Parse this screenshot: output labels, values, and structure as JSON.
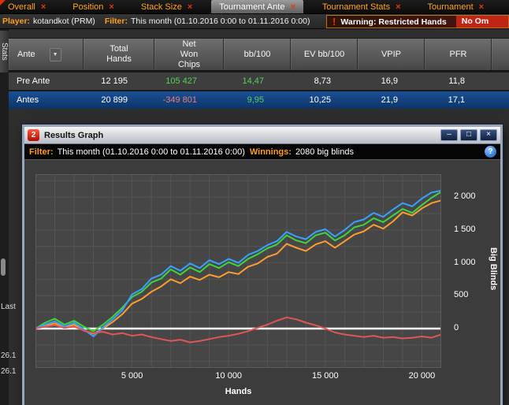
{
  "colors": {
    "accent_orange": "#ff9d1e",
    "positive_green": "#58d058",
    "negative_red": "#ef7d7d",
    "selected_row_blue": "#0d3468"
  },
  "tab_bar": {
    "close_glyph": "×",
    "tabs": [
      {
        "label": "Overall",
        "active": false
      },
      {
        "label": "Position",
        "active": false
      },
      {
        "label": "Stack Size",
        "active": false
      },
      {
        "label": "Tournament Ante",
        "active": true
      },
      {
        "label": "Tournament Stats",
        "active": false
      },
      {
        "label": "Tournament",
        "active": false
      }
    ]
  },
  "info_bar": {
    "player_label": "Player:",
    "player_value": "kotandkot (PRM)",
    "filter_label": "Filter:",
    "filter_value": "This month (01.10.2016 0:00 to 01.11.2016 0:00)",
    "warning_icon": "!",
    "warning_text": "Warning: Restricted Hands",
    "warning_extra": "No Om"
  },
  "side_panel": {
    "vertical_tab_label": "Stats",
    "fragments": [
      "Last",
      "26.1",
      "26.1"
    ]
  },
  "stats_table": {
    "sort_arrow": "▼",
    "columns": [
      "Ante",
      "Total\nHands",
      "Net\nWon\nChips",
      "bb/100",
      "EV bb/100",
      "VPIP",
      "PFR"
    ],
    "rows": [
      {
        "name": "Pre Ante",
        "selected": false,
        "cells": [
          {
            "v": "12 195",
            "cls": "plain"
          },
          {
            "v": "105 427",
            "cls": "green"
          },
          {
            "v": "14,47",
            "cls": "green"
          },
          {
            "v": "8,73",
            "cls": "plain"
          },
          {
            "v": "16,9",
            "cls": "plain"
          },
          {
            "v": "11,8",
            "cls": "plain"
          }
        ]
      },
      {
        "name": "Antes",
        "selected": true,
        "cells": [
          {
            "v": "20 899",
            "cls": "plain"
          },
          {
            "v": "-349 801",
            "cls": "red"
          },
          {
            "v": "9,95",
            "cls": "green"
          },
          {
            "v": "10,25",
            "cls": "plain"
          },
          {
            "v": "21,9",
            "cls": "plain"
          },
          {
            "v": "17,1",
            "cls": "plain"
          }
        ]
      }
    ]
  },
  "graph_window": {
    "icon_glyph": "2",
    "title": "Results Graph",
    "buttons": {
      "minimize": "–",
      "maximize": "□",
      "close": "×"
    },
    "filter_label": "Filter:",
    "filter_value": "This month (01.10.2016 0:00 to 01.11.2016 0:00)",
    "winnings_label": "Winnings:",
    "winnings_value": "2080 big blinds",
    "help_glyph": "?"
  },
  "chart_data": {
    "type": "line",
    "title": "Results Graph",
    "xlabel": "Hands",
    "ylabel": "Big Blinds",
    "xlim": [
      0,
      21000
    ],
    "ylim": [
      -600,
      2350
    ],
    "legend": "none",
    "plot_bg": "#464646",
    "grid": {
      "x_step": 1000,
      "y_step": 250,
      "color": "#555555"
    },
    "zero_line_color": "#ffffff",
    "xticks": [
      {
        "v": 5000,
        "label": "5 000"
      },
      {
        "v": 10000,
        "label": "10 000"
      },
      {
        "v": 15000,
        "label": "15 000"
      },
      {
        "v": 20000,
        "label": "20 000"
      }
    ],
    "yticks": [
      {
        "v": 0,
        "label": "0"
      },
      {
        "v": 500,
        "label": "500"
      },
      {
        "v": 1000,
        "label": "1 000"
      },
      {
        "v": 1500,
        "label": "1 500"
      },
      {
        "v": 2000,
        "label": "2 000"
      }
    ],
    "x": [
      0,
      500,
      1000,
      1500,
      2000,
      2500,
      3000,
      3500,
      4000,
      4500,
      5000,
      5500,
      6000,
      6500,
      7000,
      7500,
      8000,
      8500,
      9000,
      9500,
      10000,
      10500,
      11000,
      11500,
      12000,
      12500,
      13000,
      13500,
      14000,
      14500,
      15000,
      15500,
      16000,
      16500,
      17000,
      17500,
      18000,
      18500,
      19000,
      19500,
      20000,
      20500,
      21000
    ],
    "series": [
      {
        "name": "orange-line",
        "color": "#ff9c2e",
        "values": [
          0,
          40,
          80,
          10,
          60,
          -30,
          -80,
          0,
          100,
          220,
          380,
          450,
          560,
          640,
          750,
          690,
          790,
          740,
          820,
          780,
          860,
          830,
          940,
          990,
          1090,
          1140,
          1290,
          1230,
          1180,
          1280,
          1330,
          1230,
          1330,
          1430,
          1480,
          1580,
          1520,
          1630,
          1770,
          1720,
          1830,
          1910,
          1950
        ]
      },
      {
        "name": "green-line",
        "color": "#3ed43e",
        "values": [
          0,
          90,
          150,
          60,
          120,
          30,
          -40,
          60,
          180,
          320,
          480,
          560,
          700,
          760,
          900,
          820,
          930,
          860,
          980,
          920,
          1010,
          950,
          1060,
          1130,
          1220,
          1280,
          1420,
          1340,
          1300,
          1420,
          1460,
          1340,
          1420,
          1540,
          1580,
          1680,
          1620,
          1720,
          1820,
          1760,
          1880,
          1990,
          2080
        ]
      },
      {
        "name": "blue-line",
        "color": "#3aa0ff",
        "values": [
          0,
          60,
          110,
          30,
          90,
          -10,
          -120,
          20,
          140,
          280,
          520,
          600,
          760,
          820,
          950,
          880,
          990,
          920,
          1040,
          980,
          1060,
          1000,
          1120,
          1180,
          1270,
          1330,
          1470,
          1400,
          1360,
          1470,
          1510,
          1400,
          1500,
          1620,
          1660,
          1760,
          1700,
          1810,
          1910,
          1860,
          1980,
          2070,
          2100
        ]
      },
      {
        "name": "red-line",
        "color": "#e05555",
        "values": [
          0,
          30,
          50,
          10,
          30,
          -30,
          -70,
          -50,
          -90,
          -70,
          -110,
          -90,
          -130,
          -160,
          -190,
          -170,
          -210,
          -190,
          -160,
          -130,
          -110,
          -80,
          -40,
          10,
          60,
          120,
          170,
          140,
          90,
          50,
          0,
          -60,
          -90,
          -110,
          -130,
          -110,
          -140,
          -130,
          -150,
          -140,
          -120,
          -140,
          -90
        ]
      }
    ]
  }
}
